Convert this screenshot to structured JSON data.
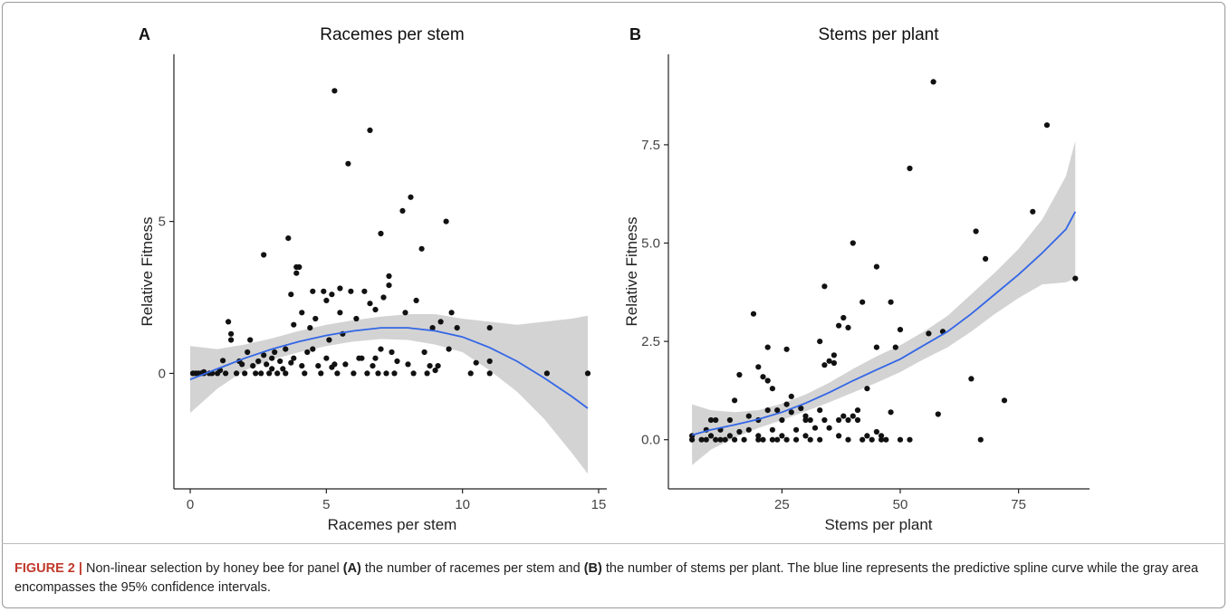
{
  "colors": {
    "points": "#111111",
    "curve": "#3366e6",
    "ribbon": "#d3d3d3",
    "axis": "#222222"
  },
  "chart_data": [
    {
      "panel_label": "A",
      "type": "scatter",
      "title": "Racemes per stem",
      "xlabel": "Racemes per stem",
      "ylabel": "Relative Fitness",
      "xlim": [
        -0.6,
        15.3
      ],
      "ylim": [
        -3.8,
        10.5
      ],
      "xticks": [
        0,
        5,
        10,
        15
      ],
      "yticks": [
        0,
        5
      ],
      "xtick_labels": [
        "0",
        "5",
        "10",
        "15"
      ],
      "ytick_labels": [
        "0",
        "5"
      ],
      "grid": false,
      "points": [
        [
          0.1,
          0
        ],
        [
          0.2,
          0
        ],
        [
          0.3,
          0
        ],
        [
          0.4,
          0
        ],
        [
          0.5,
          0
        ],
        [
          0.5,
          0.05
        ],
        [
          0.7,
          0
        ],
        [
          0.8,
          0
        ],
        [
          1.0,
          0
        ],
        [
          1.1,
          0.1
        ],
        [
          1.2,
          0.42
        ],
        [
          1.3,
          0
        ],
        [
          1.4,
          1.7
        ],
        [
          1.5,
          1.1
        ],
        [
          1.5,
          1.3
        ],
        [
          1.7,
          0
        ],
        [
          1.8,
          0.4
        ],
        [
          1.9,
          0.3
        ],
        [
          2.0,
          0
        ],
        [
          2.1,
          0.7
        ],
        [
          2.2,
          1.1
        ],
        [
          2.3,
          0.25
        ],
        [
          2.4,
          0
        ],
        [
          2.5,
          0.4
        ],
        [
          2.6,
          0
        ],
        [
          2.7,
          0.6
        ],
        [
          2.7,
          3.9
        ],
        [
          2.8,
          0.3
        ],
        [
          2.9,
          0
        ],
        [
          3.0,
          0.15
        ],
        [
          3.0,
          0.5
        ],
        [
          3.1,
          0.7
        ],
        [
          3.2,
          0
        ],
        [
          3.3,
          0.4
        ],
        [
          3.4,
          0.15
        ],
        [
          3.5,
          0
        ],
        [
          3.5,
          0.8
        ],
        [
          3.6,
          4.45
        ],
        [
          3.7,
          0.35
        ],
        [
          3.7,
          2.6
        ],
        [
          3.8,
          0.5
        ],
        [
          3.8,
          1.6
        ],
        [
          3.9,
          3.5
        ],
        [
          3.9,
          3.3
        ],
        [
          4.0,
          3.5
        ],
        [
          4.1,
          0.25
        ],
        [
          4.1,
          2.0
        ],
        [
          4.2,
          0
        ],
        [
          4.3,
          0.7
        ],
        [
          4.4,
          1.5
        ],
        [
          4.5,
          0.8
        ],
        [
          4.5,
          2.7
        ],
        [
          4.6,
          1.8
        ],
        [
          4.7,
          0.25
        ],
        [
          4.8,
          0
        ],
        [
          4.9,
          2.7
        ],
        [
          5.0,
          0.5
        ],
        [
          5.0,
          2.4
        ],
        [
          5.1,
          1.1
        ],
        [
          5.2,
          2.6
        ],
        [
          5.2,
          0.2
        ],
        [
          5.3,
          9.3
        ],
        [
          5.3,
          0.3
        ],
        [
          5.4,
          0
        ],
        [
          5.5,
          2.8
        ],
        [
          5.5,
          2.0
        ],
        [
          5.6,
          1.3
        ],
        [
          5.7,
          0.3
        ],
        [
          5.8,
          6.9
        ],
        [
          5.9,
          2.7
        ],
        [
          6.0,
          0
        ],
        [
          6.1,
          1.8
        ],
        [
          6.2,
          0.5
        ],
        [
          6.3,
          0.5
        ],
        [
          6.4,
          2.7
        ],
        [
          6.5,
          0
        ],
        [
          6.6,
          8.0
        ],
        [
          6.6,
          2.3
        ],
        [
          6.7,
          0.25
        ],
        [
          6.8,
          0.5
        ],
        [
          6.8,
          2.1
        ],
        [
          6.9,
          0
        ],
        [
          7.0,
          4.6
        ],
        [
          7.0,
          0.8
        ],
        [
          7.1,
          2.5
        ],
        [
          7.2,
          0
        ],
        [
          7.3,
          3.2
        ],
        [
          7.3,
          2.9
        ],
        [
          7.4,
          0.7
        ],
        [
          7.5,
          0
        ],
        [
          7.6,
          0.4
        ],
        [
          7.8,
          5.35
        ],
        [
          7.9,
          2.0
        ],
        [
          8.0,
          0.3
        ],
        [
          8.1,
          5.8
        ],
        [
          8.2,
          0
        ],
        [
          8.3,
          2.4
        ],
        [
          8.5,
          4.1
        ],
        [
          8.6,
          0.7
        ],
        [
          8.7,
          0
        ],
        [
          8.8,
          0.25
        ],
        [
          8.9,
          1.5
        ],
        [
          9.0,
          0.1
        ],
        [
          9.1,
          0.25
        ],
        [
          9.2,
          1.7
        ],
        [
          9.4,
          5.0
        ],
        [
          9.5,
          0.8
        ],
        [
          9.6,
          2.0
        ],
        [
          9.8,
          1.5
        ],
        [
          10.3,
          0
        ],
        [
          10.5,
          0.35
        ],
        [
          11.0,
          0
        ],
        [
          11.0,
          0.4
        ],
        [
          11.0,
          1.5
        ],
        [
          13.1,
          0
        ],
        [
          14.6,
          0
        ]
      ],
      "curve": {
        "x": [
          0,
          1,
          2,
          3,
          4,
          5,
          6,
          7,
          8,
          9,
          10,
          11,
          12,
          13,
          14,
          14.6
        ],
        "y": [
          -0.2,
          0.15,
          0.5,
          0.8,
          1.05,
          1.25,
          1.4,
          1.5,
          1.5,
          1.4,
          1.2,
          0.85,
          0.4,
          -0.15,
          -0.75,
          -1.15
        ],
        "lower": [
          -1.3,
          -0.5,
          0.1,
          0.45,
          0.7,
          0.9,
          1.05,
          1.13,
          1.1,
          0.95,
          0.7,
          0.1,
          -0.6,
          -1.5,
          -2.6,
          -3.3
        ],
        "upper": [
          0.9,
          0.8,
          0.95,
          1.15,
          1.4,
          1.6,
          1.75,
          1.87,
          1.95,
          1.95,
          1.8,
          1.7,
          1.6,
          1.7,
          1.8,
          1.9
        ]
      }
    },
    {
      "panel_label": "B",
      "type": "scatter",
      "title": "Stems per plant",
      "xlabel": "Stems per plant",
      "ylabel": "Relative Fitness",
      "xlim": [
        1,
        90
      ],
      "ylim": [
        -1.25,
        9.8
      ],
      "xticks": [
        25,
        50,
        75
      ],
      "yticks": [
        0,
        2.5,
        5,
        7.5
      ],
      "xtick_labels": [
        "25",
        "50",
        "75"
      ],
      "ytick_labels": [
        "0.0",
        "2.5",
        "5.0",
        "7.5"
      ],
      "grid": false,
      "points": [
        [
          6,
          0
        ],
        [
          6,
          0.1
        ],
        [
          8,
          0
        ],
        [
          9,
          0
        ],
        [
          9,
          0.25
        ],
        [
          10,
          0.5
        ],
        [
          10,
          0.1
        ],
        [
          11,
          0
        ],
        [
          11,
          0.5
        ],
        [
          12,
          0
        ],
        [
          12,
          0.25
        ],
        [
          13,
          0
        ],
        [
          14,
          0.1
        ],
        [
          14,
          0.5
        ],
        [
          15,
          0
        ],
        [
          15,
          1.0
        ],
        [
          16,
          0.2
        ],
        [
          16,
          1.65
        ],
        [
          17,
          0
        ],
        [
          18,
          0.6
        ],
        [
          18,
          0.25
        ],
        [
          19,
          3.2
        ],
        [
          20,
          0
        ],
        [
          20,
          0.1
        ],
        [
          20,
          0.5
        ],
        [
          20,
          1.85
        ],
        [
          21,
          1.6
        ],
        [
          21,
          0
        ],
        [
          22,
          1.5
        ],
        [
          22,
          0.75
        ],
        [
          22,
          2.35
        ],
        [
          23,
          0.25
        ],
        [
          23,
          1.3
        ],
        [
          23,
          0
        ],
        [
          24,
          0.75
        ],
        [
          24,
          0
        ],
        [
          25,
          0.1
        ],
        [
          25,
          0.5
        ],
        [
          26,
          0.9
        ],
        [
          26,
          2.3
        ],
        [
          26,
          0
        ],
        [
          27,
          0.7
        ],
        [
          27,
          1.1
        ],
        [
          28,
          0
        ],
        [
          28,
          0.25
        ],
        [
          29,
          0.8
        ],
        [
          30,
          0.5
        ],
        [
          30,
          0.1
        ],
        [
          30,
          0.6
        ],
        [
          31,
          0.5
        ],
        [
          31,
          0
        ],
        [
          32,
          0.3
        ],
        [
          33,
          2.5
        ],
        [
          33,
          0.75
        ],
        [
          33,
          0
        ],
        [
          34,
          3.9
        ],
        [
          34,
          1.9
        ],
        [
          34,
          0.5
        ],
        [
          35,
          2.0
        ],
        [
          35,
          0.3
        ],
        [
          36,
          2.15
        ],
        [
          36,
          1.95
        ],
        [
          37,
          2.9
        ],
        [
          37,
          0.5
        ],
        [
          37,
          0.1
        ],
        [
          38,
          3.1
        ],
        [
          38,
          0.6
        ],
        [
          39,
          0.5
        ],
        [
          39,
          2.85
        ],
        [
          39,
          0
        ],
        [
          40,
          5.0
        ],
        [
          40,
          0.6
        ],
        [
          41,
          0.5
        ],
        [
          41,
          0.75
        ],
        [
          42,
          3.5
        ],
        [
          42,
          0
        ],
        [
          43,
          1.3
        ],
        [
          43,
          0.1
        ],
        [
          44,
          0
        ],
        [
          45,
          4.4
        ],
        [
          45,
          2.35
        ],
        [
          45,
          0.2
        ],
        [
          46,
          0
        ],
        [
          46,
          0.1
        ],
        [
          47,
          0
        ],
        [
          48,
          3.5
        ],
        [
          48,
          0.7
        ],
        [
          49,
          2.35
        ],
        [
          50,
          2.8
        ],
        [
          50,
          0
        ],
        [
          52,
          0
        ],
        [
          52,
          6.9
        ],
        [
          56,
          2.7
        ],
        [
          57,
          9.1
        ],
        [
          58,
          0.65
        ],
        [
          59,
          2.75
        ],
        [
          65,
          1.55
        ],
        [
          66,
          5.3
        ],
        [
          67,
          0
        ],
        [
          68,
          4.6
        ],
        [
          72,
          1.0
        ],
        [
          78,
          5.8
        ],
        [
          81,
          8.0
        ],
        [
          87,
          4.1
        ]
      ],
      "curve": {
        "x": [
          6,
          10,
          15,
          20,
          25,
          30,
          35,
          40,
          45,
          50,
          55,
          60,
          65,
          70,
          75,
          80,
          85,
          87
        ],
        "y": [
          0.12,
          0.25,
          0.38,
          0.52,
          0.7,
          0.93,
          1.2,
          1.5,
          1.78,
          2.05,
          2.4,
          2.75,
          3.2,
          3.7,
          4.2,
          4.75,
          5.35,
          5.8
        ],
        "lower": [
          -0.65,
          -0.25,
          0.05,
          0.3,
          0.5,
          0.72,
          0.95,
          1.2,
          1.45,
          1.72,
          2.05,
          2.35,
          2.75,
          3.2,
          3.6,
          3.95,
          4.0,
          4.1
        ],
        "upper": [
          0.9,
          0.75,
          0.7,
          0.75,
          0.92,
          1.15,
          1.45,
          1.8,
          2.12,
          2.4,
          2.75,
          3.15,
          3.7,
          4.25,
          4.85,
          5.6,
          6.7,
          7.6
        ]
      }
    }
  ],
  "caption": {
    "figure_number": "FIGURE 2 |",
    "text_1": " Non-linear selection by honey bee for panel ",
    "label_a": "(A)",
    "text_2": " the number of racemes per stem and ",
    "label_b": "(B)",
    "text_3": " the number of stems per plant. The blue line represents the predictive spline curve while the gray area encompasses the 95% confidence intervals."
  }
}
